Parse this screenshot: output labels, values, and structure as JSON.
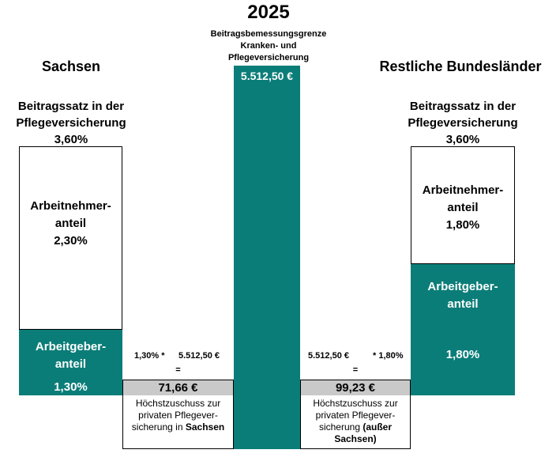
{
  "year": "2025",
  "bbg": {
    "line1": "Beitragsbemessungsgrenze",
    "line2": "Kranken- und",
    "line3": "Pflegeversicherung",
    "value": "5.512,50 €"
  },
  "sachsen": {
    "title": "Sachsen",
    "rate_label_1": "Beitragssatz in der",
    "rate_label_2": "Pflegeversicherung",
    "rate": "3,60%",
    "employee_1": "Arbeitnehmer-",
    "employee_2": "anteil",
    "employee_rate": "2,30%",
    "employer_1": "Arbeitgeber-",
    "employer_2": "anteil",
    "employer_rate": "1,30%",
    "calc_rate": "1,30% *",
    "calc_base": "5.512,50 €",
    "equals": "=",
    "result": "71,66 €",
    "note_1": "Höchstzuschuss zur",
    "note_2": "privaten Pflegever-",
    "note_3": "sicherung in",
    "note_bold": "Sachsen"
  },
  "rest": {
    "title": "Restliche Bundesländer",
    "rate_label_1": "Beitragssatz in der",
    "rate_label_2": "Pflegeversicherung",
    "rate": "3,60%",
    "employee_1": "Arbeitnehmer-",
    "employee_2": "anteil",
    "employee_rate": "1,80%",
    "employer_1": "Arbeitgeber-",
    "employer_2": "anteil",
    "employer_rate": "1,80%",
    "calc_base": "5.512,50 €",
    "calc_rate": "* 1,80%",
    "equals": "=",
    "result": "99,23 €",
    "note_1": "Höchstzuschuss zur",
    "note_2": "privaten Pflegever-",
    "note_3": "sicherung",
    "note_bold_1": "(außer",
    "note_bold_2": "Sachsen)"
  },
  "colors": {
    "teal": "#0b7d78",
    "grey": "#c9c9c9"
  }
}
